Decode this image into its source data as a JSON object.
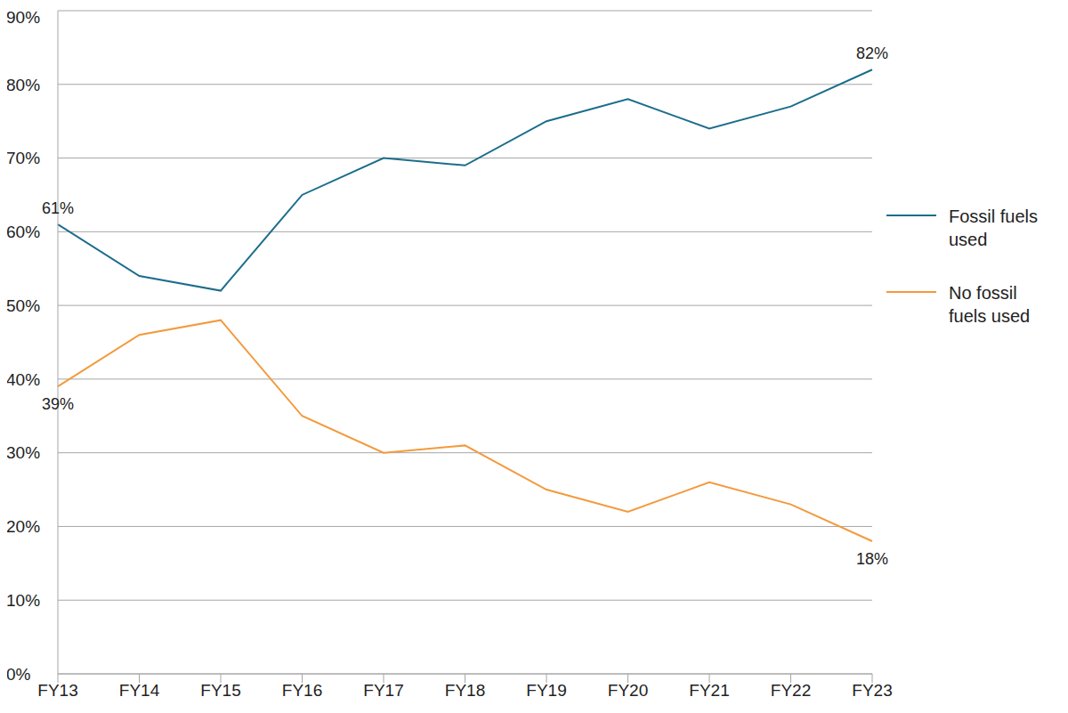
{
  "chart_data": {
    "type": "line",
    "categories": [
      "FY13",
      "FY14",
      "FY15",
      "FY16",
      "FY17",
      "FY18",
      "FY19",
      "FY20",
      "FY21",
      "FY22",
      "FY23"
    ],
    "series": [
      {
        "name": "Fossil fuels used",
        "color": "#1b6d8c",
        "values": [
          61,
          54,
          52,
          65,
          70,
          69,
          75,
          78,
          74,
          77,
          82
        ],
        "value_labels": [
          "61%",
          null,
          null,
          null,
          null,
          null,
          null,
          null,
          null,
          null,
          "82%"
        ]
      },
      {
        "name": "No fossil fuels used",
        "color": "#f39a3c",
        "values": [
          39,
          46,
          48,
          35,
          30,
          31,
          25,
          22,
          26,
          23,
          18
        ],
        "value_labels": [
          "39%",
          null,
          null,
          null,
          null,
          null,
          null,
          null,
          null,
          null,
          "18%"
        ]
      }
    ],
    "ylim": [
      0,
      90
    ],
    "yticks": [
      {
        "value": 0,
        "label": "0%"
      },
      {
        "value": 10,
        "label": "10%"
      },
      {
        "value": 20,
        "label": "20%"
      },
      {
        "value": 30,
        "label": "30%"
      },
      {
        "value": 40,
        "label": "40%"
      },
      {
        "value": 50,
        "label": "50%"
      },
      {
        "value": 60,
        "label": "60%"
      },
      {
        "value": 70,
        "label": "70%"
      },
      {
        "value": 80,
        "label": "80%"
      },
      {
        "value": 90,
        "label": "90%"
      }
    ],
    "grid": true,
    "legend": "right",
    "data_labels": true
  }
}
